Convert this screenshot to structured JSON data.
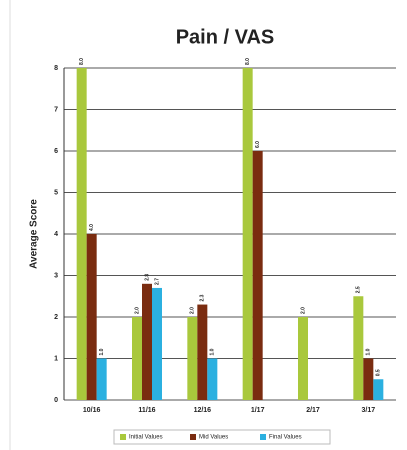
{
  "chart_data": {
    "type": "bar",
    "title": "Pain / VAS",
    "y_label": "Average Score",
    "categories": [
      "10/16",
      "11/16",
      "12/16",
      "1/17",
      "2/17",
      "3/17"
    ],
    "series": [
      {
        "name": "Initial Values",
        "color": "#a9c83c",
        "values": [
          8.0,
          2.0,
          2.0,
          8.0,
          2.0,
          2.5
        ],
        "value_labels": [
          "8.0",
          "2.0",
          "2.0",
          "8.0",
          "2.0",
          "2.5"
        ]
      },
      {
        "name": "Mid Values",
        "color": "#7a2c10",
        "values": [
          4.0,
          2.8,
          2.3,
          6.0,
          null,
          1.0
        ],
        "value_labels": [
          "4.0",
          "2.8",
          "2.3",
          "6.0",
          null,
          "1.0"
        ]
      },
      {
        "name": "Final Values",
        "color": "#2bb0e0",
        "values": [
          1.0,
          2.7,
          1.0,
          null,
          null,
          0.5
        ],
        "value_labels": [
          "1.0",
          "2.7",
          "1.0",
          null,
          null,
          "0.5"
        ]
      }
    ],
    "ylim": [
      0,
      8
    ],
    "yticks": [
      0,
      1,
      2,
      3,
      4,
      5,
      6,
      7,
      8
    ],
    "grid": true,
    "legend": "bottom"
  }
}
